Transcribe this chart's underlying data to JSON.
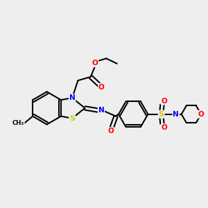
{
  "bg_color": "#eeeeee",
  "bond_color": "#000000",
  "N_color": "#0000ff",
  "O_color": "#ff0000",
  "S_color": "#cccc00",
  "line_width": 1.5,
  "figsize": [
    3.0,
    3.0
  ],
  "dpi": 100,
  "xlim": [
    0,
    10
  ],
  "ylim": [
    0,
    10
  ]
}
